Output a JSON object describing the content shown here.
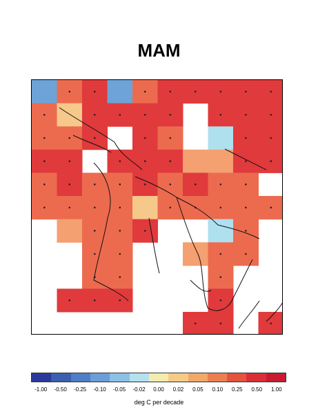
{
  "title": "MAM",
  "colorbar": {
    "colors": [
      "#2b3a9a",
      "#3c5fb0",
      "#4e7ec7",
      "#6a9fd8",
      "#8cc0e6",
      "#b5e0ef",
      "#f4ecae",
      "#f6cb86",
      "#f2a86a",
      "#ec7f52",
      "#e5533f",
      "#db2f38",
      "#c81b31"
    ],
    "tick_labels": [
      "-1.00",
      "-0.50",
      "-0.25",
      "-0.10",
      "-0.05",
      "-0.02",
      "0.00",
      "0.02",
      "0.05",
      "0.10",
      "0.25",
      "0.50",
      "1.00"
    ],
    "units_label": "deg C per decade"
  },
  "cell_colors": {
    "R": "#e03a3c",
    "O": "#ec6b4f",
    "L": "#f4a070",
    "Y": "#f6c88a",
    "B": "#6da3d6",
    "C": "#aee0ee",
    "W": "#ffffff"
  },
  "grid": {
    "rows": [
      "BORBORRRRR",
      "OYRRRRWRRR",
      "OORWROWCRR",
      "RRWRRRLLRR",
      "OROOROROOW",
      "OOOOYOOOOO",
      "WLOORWWCOW",
      "WWOOWWLOOW",
      "WWOOWWWOWW",
      "WRRRWWWRWW",
      "WWWWWWRRWR"
    ]
  }
}
